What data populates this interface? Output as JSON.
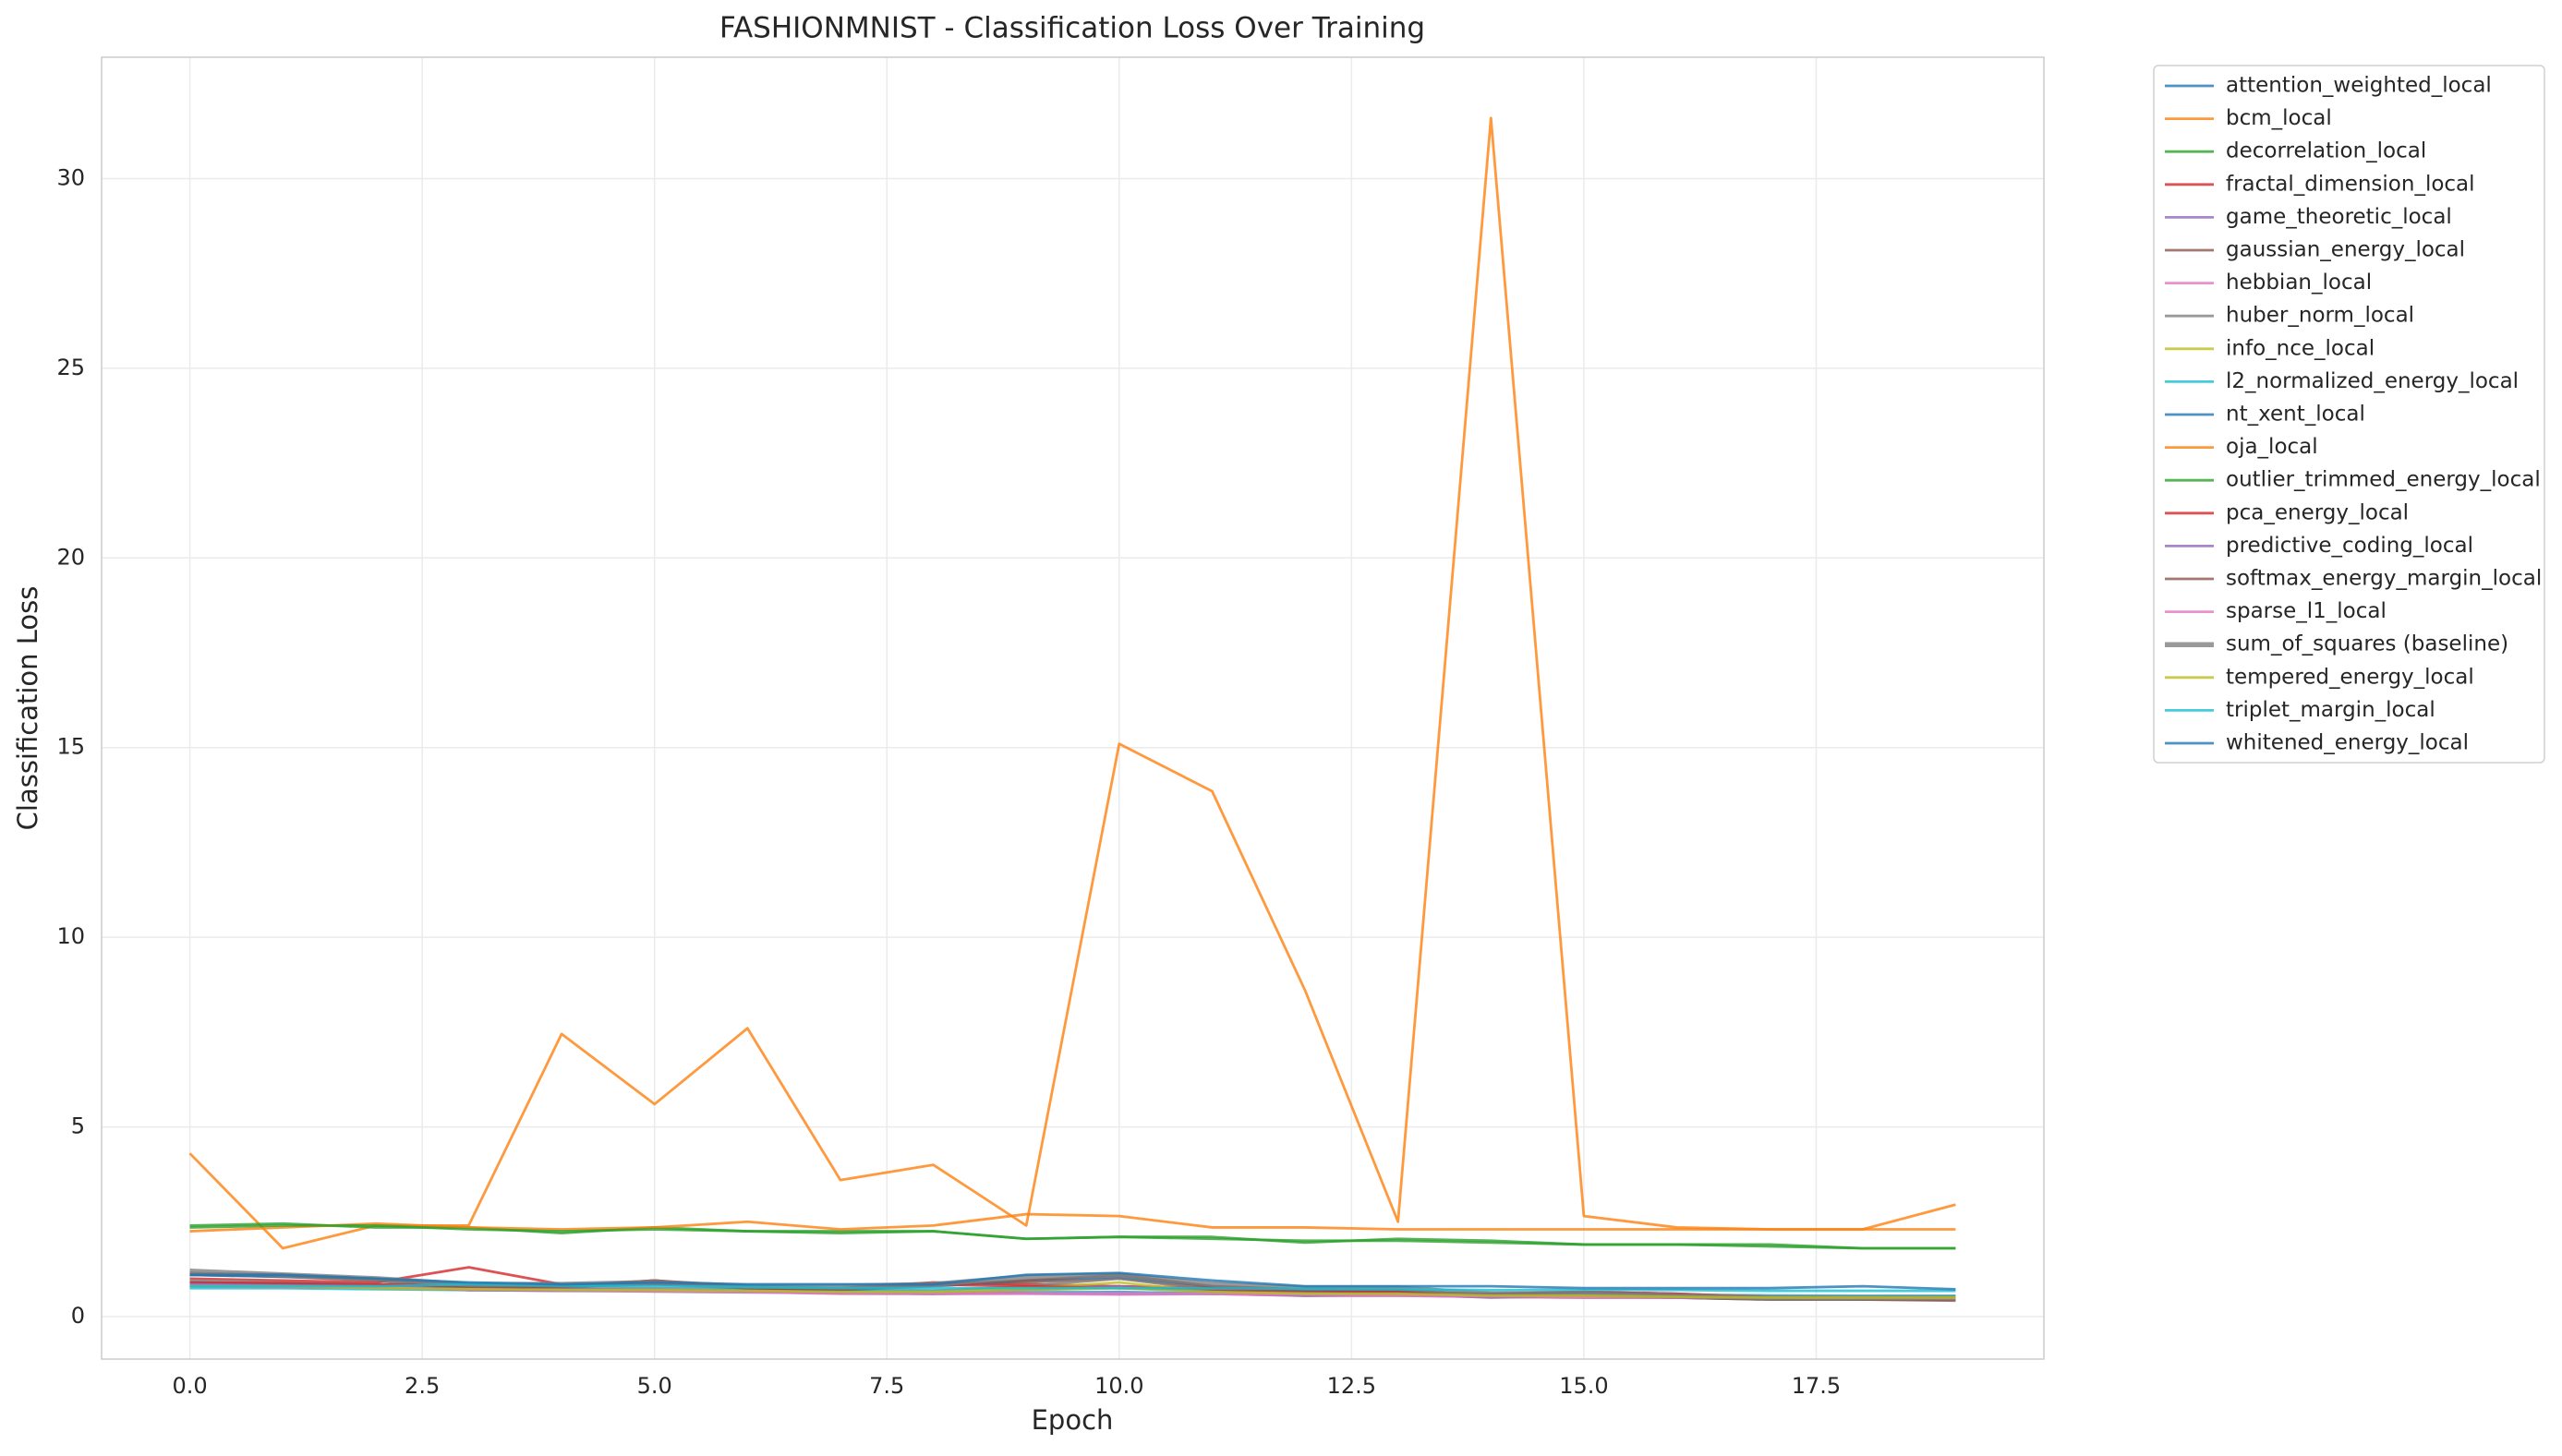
{
  "chart_data": {
    "type": "line",
    "title": "FASHIONMNIST - Classification Loss Over Training",
    "x_label": "Epoch",
    "y_label": "Classification Loss",
    "x": [
      0,
      1,
      2,
      3,
      4,
      5,
      6,
      7,
      8,
      9,
      10,
      11,
      12,
      13,
      14,
      15,
      16,
      17,
      18,
      19
    ],
    "xlim": [
      -0.95,
      19.95
    ],
    "ylim": [
      -1.12,
      33.2
    ],
    "xticks": [
      {
        "value": 0,
        "label": "0.0"
      },
      {
        "value": 2.5,
        "label": "2.5"
      },
      {
        "value": 5,
        "label": "5.0"
      },
      {
        "value": 7.5,
        "label": "7.5"
      },
      {
        "value": 10,
        "label": "10.0"
      },
      {
        "value": 12.5,
        "label": "12.5"
      },
      {
        "value": 15,
        "label": "15.0"
      },
      {
        "value": 17.5,
        "label": "17.5"
      }
    ],
    "yticks": [
      0,
      5,
      10,
      15,
      20,
      25,
      30
    ],
    "grid": true,
    "legend": "right",
    "series": [
      {
        "name": "attention_weighted_local",
        "color": "#1f77b4",
        "values": [
          0.9,
          0.85,
          0.8,
          0.75,
          0.72,
          0.7,
          0.68,
          0.65,
          0.63,
          0.62,
          0.6,
          0.6,
          0.58,
          0.56,
          0.55,
          0.54,
          0.52,
          0.5,
          0.5,
          0.48
        ]
      },
      {
        "name": "bcm_local",
        "color": "#ff7f0e",
        "values": [
          4.3,
          1.8,
          2.4,
          2.4,
          7.45,
          5.6,
          7.6,
          3.6,
          4.0,
          2.4,
          15.1,
          13.85,
          8.6,
          2.5,
          31.6,
          2.65,
          2.35,
          2.3,
          2.3,
          2.95
        ]
      },
      {
        "name": "decorrelation_local",
        "color": "#2ca02c",
        "values": [
          2.4,
          2.45,
          2.35,
          2.35,
          2.2,
          2.35,
          2.25,
          2.25,
          2.25,
          2.05,
          2.1,
          2.1,
          1.95,
          2.05,
          2.0,
          1.9,
          1.9,
          1.9,
          1.8,
          1.8
        ]
      },
      {
        "name": "fractal_dimension_local",
        "color": "#d62728",
        "values": [
          1.0,
          0.95,
          0.9,
          1.3,
          0.85,
          0.85,
          0.8,
          0.75,
          0.9,
          0.85,
          0.8,
          0.75,
          0.7,
          0.65,
          0.6,
          0.65,
          0.6,
          0.5,
          0.5,
          0.5
        ]
      },
      {
        "name": "game_theoretic_local",
        "color": "#9467bd",
        "values": [
          0.8,
          0.78,
          0.75,
          0.7,
          0.68,
          0.66,
          0.64,
          0.62,
          0.6,
          0.62,
          0.65,
          0.6,
          0.55,
          0.55,
          0.52,
          0.5,
          0.5,
          0.48,
          0.47,
          0.45
        ]
      },
      {
        "name": "gaussian_energy_local",
        "color": "#8c564b",
        "values": [
          1.1,
          1.05,
          0.95,
          0.7,
          0.75,
          0.9,
          0.8,
          0.7,
          0.85,
          0.9,
          1.0,
          0.75,
          0.7,
          0.65,
          0.55,
          0.55,
          0.5,
          0.48,
          0.45,
          0.45
        ]
      },
      {
        "name": "hebbian_local",
        "color": "#e377c2",
        "values": [
          0.85,
          0.8,
          0.78,
          0.7,
          0.7,
          0.68,
          0.65,
          0.6,
          0.6,
          0.6,
          0.58,
          0.6,
          0.55,
          0.55,
          0.52,
          0.5,
          0.5,
          0.48,
          0.46,
          0.45
        ]
      },
      {
        "name": "huber_norm_local",
        "color": "#7f7f7f",
        "values": [
          0.95,
          0.9,
          0.85,
          0.8,
          0.78,
          0.75,
          0.72,
          0.7,
          0.68,
          0.8,
          1.0,
          0.7,
          0.65,
          0.62,
          0.6,
          0.58,
          0.55,
          0.52,
          0.5,
          0.5
        ]
      },
      {
        "name": "info_nce_local",
        "color": "#bcbd22",
        "values": [
          0.8,
          0.78,
          0.75,
          0.72,
          0.7,
          0.68,
          0.66,
          0.64,
          0.62,
          0.75,
          0.9,
          0.65,
          0.6,
          0.58,
          0.55,
          0.53,
          0.52,
          0.5,
          0.5,
          0.48
        ]
      },
      {
        "name": "l2_normalized_energy_local",
        "color": "#17becf",
        "values": [
          0.75,
          0.75,
          0.72,
          0.7,
          0.7,
          0.7,
          0.68,
          0.66,
          0.66,
          0.65,
          0.64,
          0.62,
          0.62,
          0.62,
          0.6,
          0.58,
          0.57,
          0.56,
          0.55,
          0.55
        ]
      },
      {
        "name": "nt_xent_local",
        "color": "#1f77b4",
        "values": [
          1.1,
          1.05,
          1.0,
          0.85,
          0.8,
          0.85,
          0.75,
          0.7,
          0.8,
          0.95,
          1.05,
          0.8,
          0.7,
          0.7,
          0.55,
          0.55,
          0.5,
          0.45,
          0.45,
          0.45
        ]
      },
      {
        "name": "oja_local",
        "color": "#ff7f0e",
        "values": [
          2.25,
          2.35,
          2.45,
          2.35,
          2.3,
          2.35,
          2.5,
          2.3,
          2.4,
          2.7,
          2.65,
          2.35,
          2.35,
          2.3,
          2.3,
          2.3,
          2.3,
          2.3,
          2.3,
          2.3
        ]
      },
      {
        "name": "outlier_trimmed_energy_local",
        "color": "#2ca02c",
        "values": [
          2.35,
          2.4,
          2.4,
          2.3,
          2.25,
          2.3,
          2.25,
          2.2,
          2.25,
          2.05,
          2.1,
          2.05,
          2.0,
          2.0,
          1.95,
          1.9,
          1.9,
          1.85,
          1.8,
          1.8
        ]
      },
      {
        "name": "pca_energy_local",
        "color": "#d62728",
        "values": [
          0.9,
          0.88,
          0.85,
          0.8,
          0.8,
          0.95,
          0.75,
          0.72,
          0.85,
          0.8,
          0.75,
          0.7,
          0.68,
          0.65,
          0.6,
          0.65,
          0.6,
          0.52,
          0.5,
          0.5
        ]
      },
      {
        "name": "predictive_coding_local",
        "color": "#9467bd",
        "values": [
          0.85,
          0.82,
          0.8,
          0.7,
          0.68,
          0.7,
          0.66,
          0.62,
          0.6,
          0.7,
          0.8,
          0.65,
          0.55,
          0.6,
          0.5,
          0.55,
          0.5,
          0.48,
          0.46,
          0.45
        ]
      },
      {
        "name": "softmax_energy_margin_local",
        "color": "#8c564b",
        "values": [
          1.15,
          1.1,
          1.0,
          0.75,
          0.8,
          0.95,
          0.8,
          0.7,
          0.85,
          0.95,
          1.1,
          0.8,
          0.72,
          0.7,
          0.55,
          0.55,
          0.5,
          0.45,
          0.45,
          0.42
        ]
      },
      {
        "name": "sparse_l1_local",
        "color": "#e377c2",
        "values": [
          0.8,
          0.78,
          0.76,
          0.72,
          0.7,
          0.68,
          0.65,
          0.62,
          0.6,
          0.62,
          0.62,
          0.6,
          0.58,
          0.56,
          0.54,
          0.52,
          0.5,
          0.5,
          0.48,
          0.47
        ]
      },
      {
        "name": "sum_of_squares (baseline)",
        "color": "#7f7f7f",
        "thick": true,
        "values": [
          1.2,
          1.1,
          1.0,
          0.85,
          0.85,
          0.9,
          0.8,
          0.8,
          0.85,
          1.05,
          1.1,
          0.85,
          0.75,
          0.75,
          0.6,
          0.6,
          0.55,
          0.5,
          0.5,
          0.5
        ]
      },
      {
        "name": "tempered_energy_local",
        "color": "#bcbd22",
        "values": [
          0.8,
          0.8,
          0.75,
          0.72,
          0.7,
          0.7,
          0.68,
          0.65,
          0.65,
          0.7,
          0.75,
          0.65,
          0.6,
          0.6,
          0.55,
          0.55,
          0.52,
          0.5,
          0.5,
          0.5
        ]
      },
      {
        "name": "triplet_margin_local",
        "color": "#17becf",
        "values": [
          0.8,
          0.8,
          0.8,
          0.85,
          0.82,
          0.8,
          0.78,
          0.75,
          0.75,
          0.75,
          0.75,
          0.74,
          0.73,
          0.72,
          0.7,
          0.7,
          0.7,
          0.68,
          0.68,
          0.68
        ]
      },
      {
        "name": "whitened_energy_local",
        "color": "#1f77b4",
        "values": [
          1.1,
          1.1,
          1.0,
          0.9,
          0.85,
          0.9,
          0.85,
          0.85,
          0.85,
          1.1,
          1.15,
          0.95,
          0.8,
          0.8,
          0.8,
          0.75,
          0.75,
          0.75,
          0.8,
          0.72
        ]
      }
    ]
  }
}
